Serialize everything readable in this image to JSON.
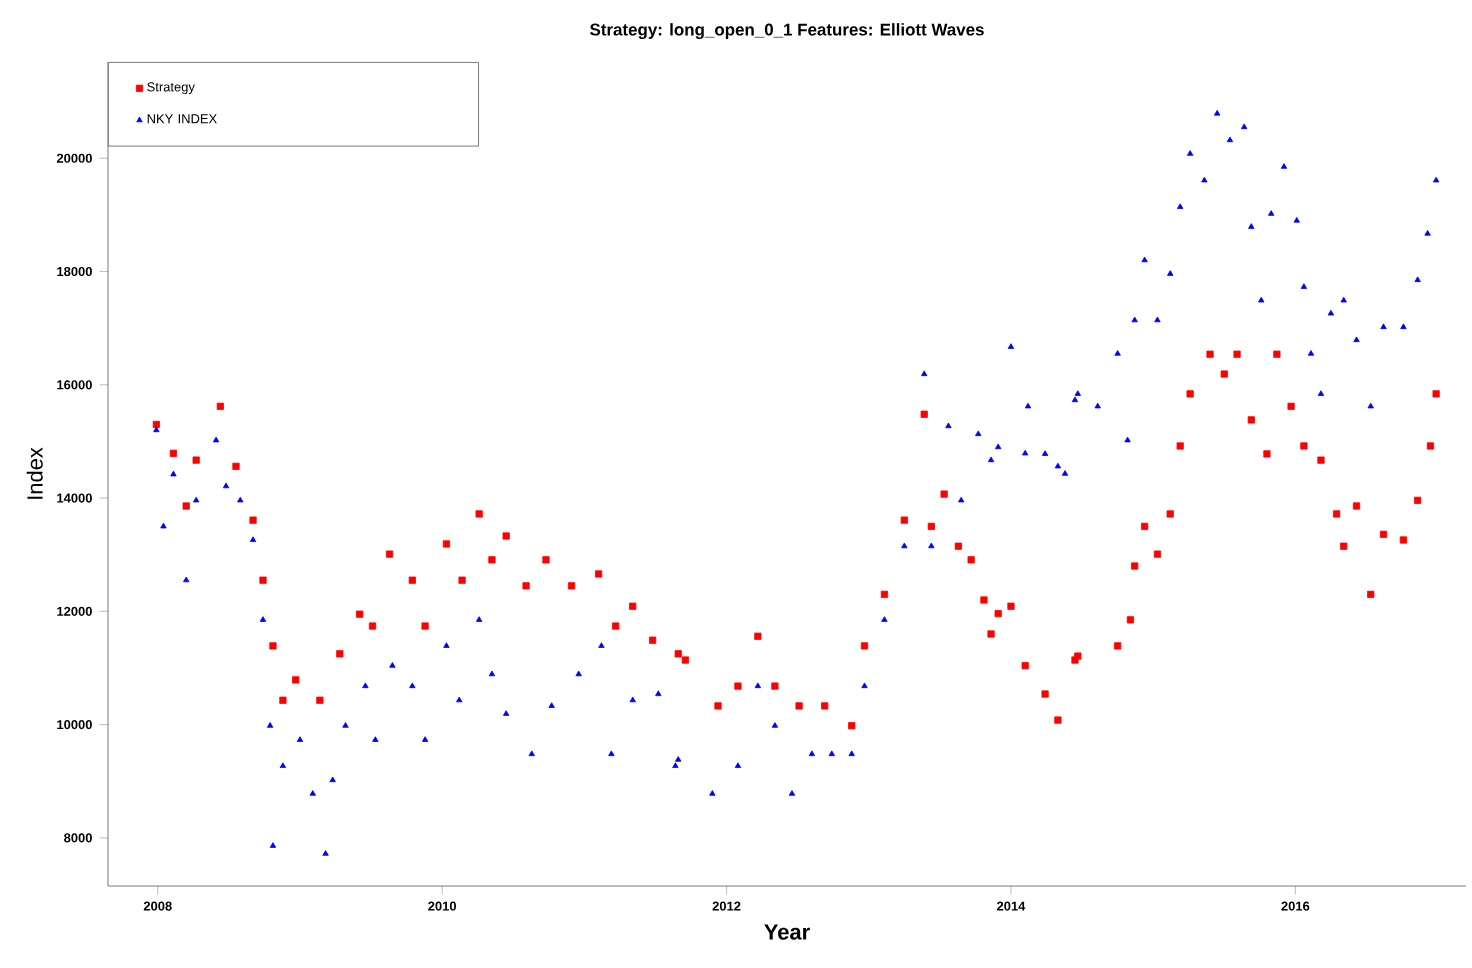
{
  "chart_data": {
    "type": "scatter",
    "title": "Strategy: long_open_0_1   Features: Elliott Waves",
    "xlabel": "Year",
    "ylabel": "Index",
    "xlim": [
      2007.65,
      2017.2
    ],
    "ylim": [
      7150,
      21700
    ],
    "xticks": [
      2008,
      2010,
      2012,
      2014,
      2016
    ],
    "yticks": [
      8000,
      10000,
      12000,
      14000,
      16000,
      18000,
      20000
    ],
    "grid": false,
    "legend": "top left",
    "series": [
      {
        "name": "Strategy",
        "color": "#ff0000",
        "marker": "square",
        "x": [
          2007.99,
          2008.11,
          2008.2,
          2008.27,
          2008.44,
          2008.55,
          2008.67,
          2008.74,
          2008.81,
          2008.88,
          2008.97,
          2009.14,
          2009.28,
          2009.42,
          2009.51,
          2009.63,
          2009.79,
          2009.88,
          2010.03,
          2010.14,
          2010.26,
          2010.35,
          2010.45,
          2010.59,
          2010.73,
          2010.91,
          2011.1,
          2011.22,
          2011.34,
          2011.48,
          2011.66,
          2011.71,
          2011.94,
          2012.08,
          2012.22,
          2012.34,
          2012.51,
          2012.69,
          2012.88,
          2012.97,
          2013.11,
          2013.25,
          2013.39,
          2013.44,
          2013.53,
          2013.63,
          2013.72,
          2013.81,
          2013.86,
          2013.91,
          2014.0,
          2014.1,
          2014.24,
          2014.33,
          2014.45,
          2014.47,
          2014.75,
          2014.84,
          2014.87,
          2014.94,
          2015.03,
          2015.12,
          2015.19,
          2015.26,
          2015.4,
          2015.5,
          2015.59,
          2015.69,
          2015.8,
          2015.87,
          2015.97,
          2016.06,
          2016.18,
          2016.29,
          2016.34,
          2016.43,
          2016.53,
          2016.62,
          2016.76,
          2016.86,
          2016.95,
          2016.99
        ],
        "values": [
          15300,
          14790,
          13860,
          14670,
          15620,
          14560,
          13610,
          12550,
          11390,
          10430,
          10790,
          10430,
          11250,
          11950,
          11740,
          13010,
          12550,
          11740,
          13190,
          12550,
          13720,
          12910,
          13330,
          12450,
          12910,
          12450,
          12660,
          11740,
          12090,
          11490,
          11250,
          11140,
          10330,
          10680,
          11560,
          10680,
          10330,
          10330,
          9980,
          11390,
          12300,
          13610,
          15480,
          13500,
          14070,
          13150,
          12910,
          12200,
          11600,
          11960,
          12090,
          11040,
          10540,
          10080,
          11140,
          11210,
          11390,
          11850,
          12800,
          13500,
          13010,
          13720,
          14920,
          15840,
          16540,
          16190,
          16540,
          15380,
          14780,
          16540,
          15620,
          14920,
          14670,
          13720,
          13150,
          13860,
          12300,
          13360,
          13260,
          13960,
          14920,
          15840
        ]
      },
      {
        "name": "NKY INDEX",
        "color": "#0000ff",
        "marker": "triangle",
        "x": [
          2007.99,
          2008.04,
          2008.11,
          2008.2,
          2008.27,
          2008.41,
          2008.48,
          2008.58,
          2008.67,
          2008.74,
          2008.79,
          2008.81,
          2008.88,
          2009.0,
          2009.09,
          2009.18,
          2009.23,
          2009.32,
          2009.46,
          2009.53,
          2009.65,
          2009.79,
          2009.88,
          2010.03,
          2010.12,
          2010.26,
          2010.35,
          2010.45,
          2010.63,
          2010.77,
          2010.96,
          2011.12,
          2011.19,
          2011.34,
          2011.52,
          2011.64,
          2011.66,
          2011.9,
          2012.08,
          2012.22,
          2012.34,
          2012.46,
          2012.6,
          2012.74,
          2012.88,
          2012.97,
          2013.11,
          2013.25,
          2013.39,
          2013.44,
          2013.56,
          2013.65,
          2013.77,
          2013.86,
          2013.91,
          2014.0,
          2014.1,
          2014.12,
          2014.24,
          2014.33,
          2014.38,
          2014.45,
          2014.47,
          2014.61,
          2014.75,
          2014.82,
          2014.87,
          2014.94,
          2015.03,
          2015.12,
          2015.19,
          2015.26,
          2015.36,
          2015.45,
          2015.54,
          2015.64,
          2015.69,
          2015.76,
          2015.83,
          2015.92,
          2016.01,
          2016.06,
          2016.11,
          2016.18,
          2016.25,
          2016.34,
          2016.43,
          2016.53,
          2016.62,
          2016.76,
          2016.86,
          2016.93,
          2016.99
        ],
        "values": [
          15200,
          13500,
          14420,
          12550,
          13960,
          15020,
          14210,
          13960,
          13260,
          11850,
          9980,
          7860,
          9270,
          9730,
          8780,
          7720,
          9020,
          9980,
          10680,
          9730,
          11040,
          10680,
          9730,
          11390,
          10430,
          11850,
          10890,
          10190,
          9480,
          10330,
          10890,
          11390,
          9480,
          10430,
          10540,
          9270,
          9380,
          8780,
          9270,
          10680,
          9980,
          8780,
          9480,
          9480,
          9480,
          10680,
          11850,
          13150,
          16190,
          13150,
          15270,
          13960,
          15130,
          14670,
          14900,
          16670,
          14790,
          15620,
          14780,
          14560,
          14430,
          15730,
          15840,
          15620,
          16550,
          15020,
          17140,
          18200,
          17140,
          17960,
          19140,
          20080,
          19610,
          20790,
          20320,
          20550,
          18790,
          17490,
          19020,
          19850,
          18900,
          17730,
          16550,
          15840,
          17260,
          17490,
          16790,
          15620,
          17020,
          17020,
          17850,
          18670,
          19610
        ]
      }
    ]
  }
}
